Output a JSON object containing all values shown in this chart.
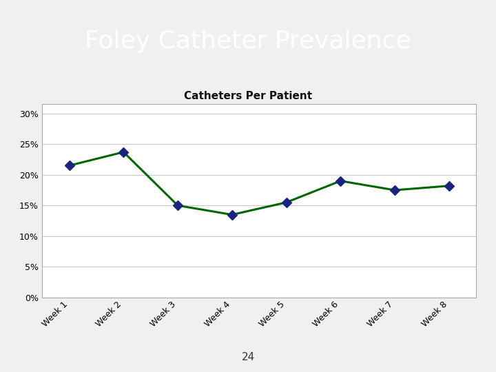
{
  "title": "Foley Catheter Prevalence",
  "title_bg_color": "#5b82b8",
  "title_text_color": "#ffffff",
  "subtitle_bg_color": "#8fa04e",
  "chart_title": "Catheters Per Patient",
  "categories": [
    "Week 1",
    "Week 2",
    "Week 3",
    "Week 4",
    "Week 5",
    "Week 6",
    "Week 7",
    "Week 8"
  ],
  "values": [
    0.215,
    0.237,
    0.15,
    0.135,
    0.155,
    0.19,
    0.175,
    0.182
  ],
  "line_color": "#006600",
  "marker_color": "#1a237e",
  "marker_style": "D",
  "marker_size": 7,
  "line_width": 2.2,
  "yticks": [
    0.0,
    0.05,
    0.1,
    0.15,
    0.2,
    0.25,
    0.3
  ],
  "ylim": [
    0,
    0.315
  ],
  "outer_bg_color": "#f0f0f0",
  "chart_bg_color": "#ffffff",
  "page_number": "24",
  "grid_color": "#c8c8c8",
  "chart_area_bg": "#ffffff",
  "title_fontsize": 26,
  "chart_title_fontsize": 11,
  "tick_fontsize": 9
}
